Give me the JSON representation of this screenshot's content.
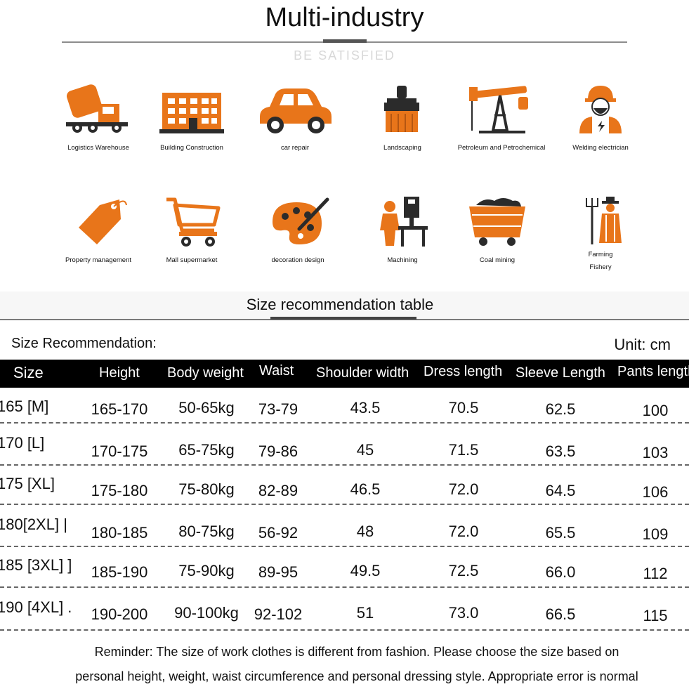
{
  "header": {
    "title": "Multi-industry",
    "subtitle": "BE SATISFIED"
  },
  "industries": [
    {
      "label": "Logistics Warehouse",
      "icon": "cement-truck-icon"
    },
    {
      "label": "Building Construction",
      "icon": "building-icon"
    },
    {
      "label": "car repair",
      "icon": "car-icon"
    },
    {
      "label": "Landscaping",
      "icon": "paint-brush-icon"
    },
    {
      "label": "Petroleum and Petrochemical",
      "icon": "oil-pump-icon"
    },
    {
      "label": "Welding electrician",
      "icon": "worker-icon"
    },
    {
      "label": "Property management",
      "icon": "price-tag-icon"
    },
    {
      "label": "Mall supermarket",
      "icon": "shopping-cart-icon"
    },
    {
      "label": "decoration design",
      "icon": "palette-icon"
    },
    {
      "label": "Machining",
      "icon": "machinist-icon"
    },
    {
      "label": "Coal mining",
      "icon": "mine-cart-icon"
    },
    {
      "label": "Farming",
      "label2": "Fishery",
      "icon": "farmer-icon"
    }
  ],
  "size_table": {
    "title": "Size recommendation table",
    "recommendation_label": "Size Recommendation:",
    "unit_label": "Unit: cm",
    "columns": [
      "Size",
      "Height",
      "Body weight",
      "Waist",
      "Shoulder width",
      "Dress length",
      "Sleeve Length",
      "Pants length"
    ],
    "rows": [
      {
        "size": "165 [M]",
        "height": "165-170",
        "weight": "50-65kg",
        "waist": "73-79",
        "shoulder": "43.5",
        "dress": "70.5",
        "sleeve": "62.5",
        "pants": "100"
      },
      {
        "size": "170 [L]",
        "height": "170-175",
        "weight": "65-75kg",
        "waist": "79-86",
        "shoulder": "45",
        "dress": "71.5",
        "sleeve": "63.5",
        "pants": "103"
      },
      {
        "size": "175 [XL]",
        "height": "175-180",
        "weight": "75-80kg",
        "waist": "82-89",
        "shoulder": "46.5",
        "dress": "72.0",
        "sleeve": "64.5",
        "pants": "106"
      },
      {
        "size": "180[2XL] |",
        "height": "180-185",
        "weight": "80-75kg",
        "waist": "56-92",
        "shoulder": "48",
        "dress": "72.0",
        "sleeve": "65.5",
        "pants": "109"
      },
      {
        "size": "185 [3XL] ]",
        "height": "185-190",
        "weight": "75-90kg",
        "waist": "89-95",
        "shoulder": "49.5",
        "dress": "72.5",
        "sleeve": "66.0",
        "pants": "112"
      },
      {
        "size": "190 [4XL] .",
        "height": "190-200",
        "weight": "90-100kg",
        "waist": "92-102",
        "shoulder": "51",
        "dress": "73.0",
        "sleeve": "66.5",
        "pants": "115"
      }
    ]
  },
  "reminder": {
    "line1": "Reminder: The size of work clothes is different from fashion. Please choose the size based on",
    "line2": "personal height, weight, waist circumference and personal dressing style. Appropriate error is normal"
  },
  "colors": {
    "accent": "#e8751a",
    "dark": "#2b2b2b"
  }
}
